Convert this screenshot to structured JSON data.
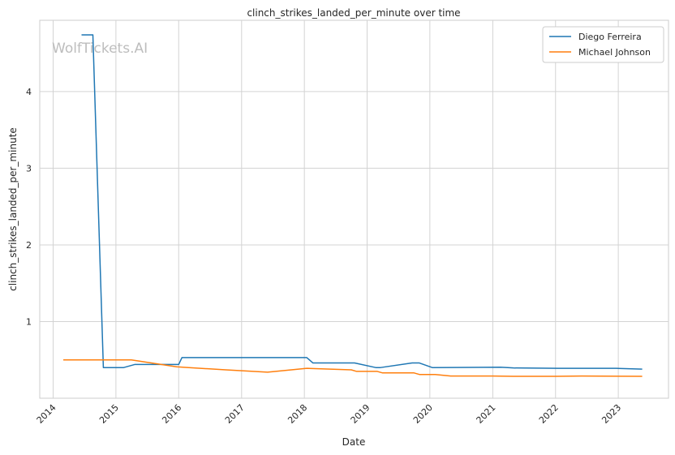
{
  "chart_data": {
    "type": "line",
    "title": "clinch_strikes_landed_per_minute over time",
    "xlabel": "Date",
    "ylabel": "clinch_strikes_landed_per_minute",
    "watermark": "WolfTickets.AI",
    "x_ticks": [
      "2014",
      "2015",
      "2016",
      "2017",
      "2018",
      "2019",
      "2020",
      "2021",
      "2022",
      "2023"
    ],
    "y_ticks": [
      1,
      2,
      3,
      4
    ],
    "xlim": [
      "2013-10-15",
      "2023-10-20"
    ],
    "ylim": [
      0.0,
      4.93
    ],
    "grid": true,
    "legend_position": "top-right",
    "series": [
      {
        "name": "Diego Ferreira",
        "color": "#1f77b4",
        "points": [
          [
            "2014-06-15",
            4.74
          ],
          [
            "2014-08-20",
            4.74
          ],
          [
            "2014-10-20",
            0.4
          ],
          [
            "2015-02-15",
            0.4
          ],
          [
            "2015-04-20",
            0.44
          ],
          [
            "2016-01-01",
            0.44
          ],
          [
            "2016-01-20",
            0.53
          ],
          [
            "2018-01-15",
            0.53
          ],
          [
            "2018-02-20",
            0.46
          ],
          [
            "2018-10-20",
            0.46
          ],
          [
            "2019-02-20",
            0.4
          ],
          [
            "2019-03-20",
            0.4
          ],
          [
            "2019-09-20",
            0.46
          ],
          [
            "2019-11-01",
            0.46
          ],
          [
            "2020-01-15",
            0.4
          ],
          [
            "2021-02-15",
            0.405
          ],
          [
            "2021-05-01",
            0.395
          ],
          [
            "2022-01-15",
            0.39
          ],
          [
            "2022-12-20",
            0.39
          ],
          [
            "2023-05-20",
            0.38
          ]
        ]
      },
      {
        "name": "Michael Johnson",
        "color": "#ff7f0e",
        "points": [
          [
            "2014-03-01",
            0.5
          ],
          [
            "2015-04-01",
            0.5
          ],
          [
            "2015-12-20",
            0.41
          ],
          [
            "2016-03-01",
            0.4
          ],
          [
            "2016-10-01",
            0.37
          ],
          [
            "2017-06-01",
            0.34
          ],
          [
            "2018-01-15",
            0.39
          ],
          [
            "2018-10-01",
            0.37
          ],
          [
            "2018-11-01",
            0.35
          ],
          [
            "2019-03-01",
            0.35
          ],
          [
            "2019-04-01",
            0.33
          ],
          [
            "2019-10-01",
            0.33
          ],
          [
            "2019-11-01",
            0.31
          ],
          [
            "2020-02-01",
            0.31
          ],
          [
            "2020-05-01",
            0.29
          ],
          [
            "2021-01-01",
            0.29
          ],
          [
            "2021-05-01",
            0.285
          ],
          [
            "2022-01-01",
            0.285
          ],
          [
            "2022-06-01",
            0.29
          ],
          [
            "2023-05-20",
            0.285
          ]
        ]
      }
    ]
  }
}
